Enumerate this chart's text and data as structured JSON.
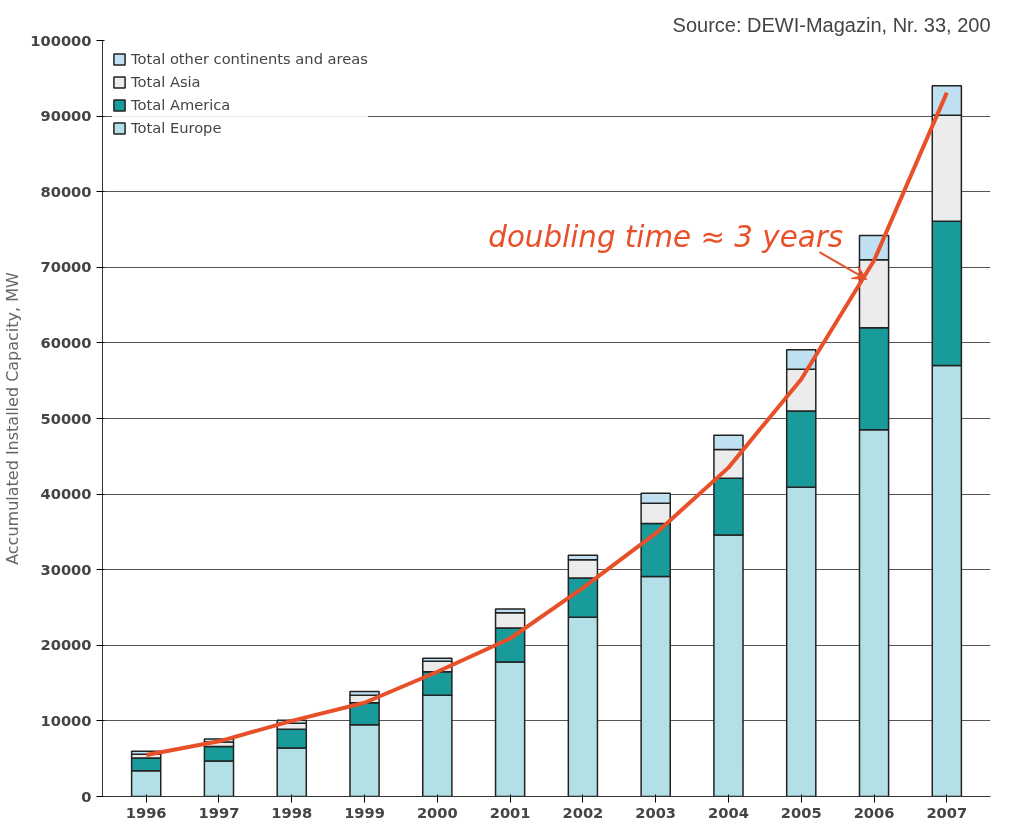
{
  "chart_data": {
    "type": "bar",
    "stacked": true,
    "ylabel": "Accumulated Installed Capacity, MW",
    "categories": [
      "1996",
      "1997",
      "1998",
      "1999",
      "2000",
      "2001",
      "2002",
      "2003",
      "2004",
      "2005",
      "2006",
      "2007"
    ],
    "series": [
      {
        "name": "Total Europe",
        "color": "#b3e0e6",
        "values": [
          3400,
          4700,
          6400,
          9500,
          13400,
          17800,
          23700,
          29100,
          34600,
          40900,
          48500,
          57000
        ]
      },
      {
        "name": "Total America",
        "color": "#1a9b9b",
        "values": [
          1700,
          1900,
          2500,
          2900,
          3100,
          4500,
          5200,
          7000,
          7500,
          10100,
          13500,
          19100
        ]
      },
      {
        "name": "Total Asia",
        "color": "#ececec",
        "values": [
          500,
          600,
          800,
          1000,
          1400,
          2000,
          2400,
          2700,
          3800,
          5500,
          9000,
          14000
        ]
      },
      {
        "name": "Total other continents and areas",
        "color": "#bfe0f0",
        "values": [
          400,
          400,
          400,
          500,
          400,
          500,
          600,
          1300,
          1900,
          2600,
          3200,
          3900
        ]
      },
      {
        "type": "line",
        "color": "#e8502a",
        "values": [
          5500,
          7300,
          10000,
          12400,
          16500,
          20900,
          27600,
          34800,
          43500,
          55200,
          70900,
          93100
        ]
      }
    ],
    "ylim": [
      0,
      100000
    ],
    "yticks": [
      0,
      10000,
      20000,
      30000,
      40000,
      50000,
      60000,
      70000,
      80000,
      90000,
      100000
    ],
    "grid": "y",
    "legend": "top left",
    "annotations": [
      "doubling time ≈ 3 years",
      "Source: DEWI-Magazin, Nr. 33, 200"
    ]
  }
}
